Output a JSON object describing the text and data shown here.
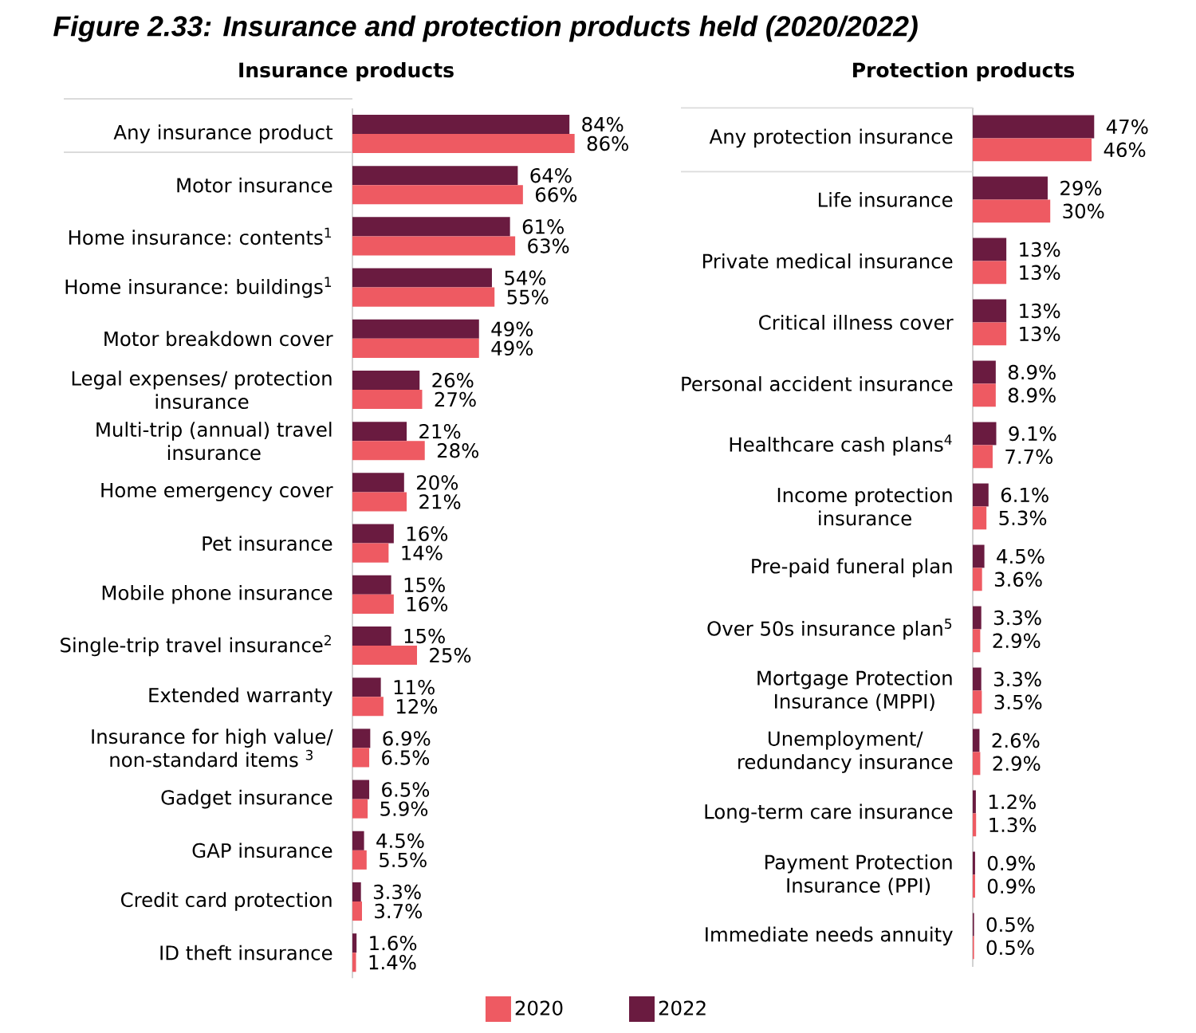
{
  "chart_data": [
    {
      "type": "bar",
      "orientation": "horizontal",
      "title": "Figure 2.33: Insurance and protection products held (2020/2022)",
      "subtitle": "Insurance products",
      "categories": [
        "Any insurance product",
        "Motor insurance",
        "Home insurance: contents$^{1}$",
        "Home insurance: buildings$^{1}$",
        "Motor breakdown cover",
        "Legal expenses/ protection insurance",
        "Multi-trip (annual) travel insurance",
        "Home emergency cover",
        "Pet insurance",
        "Mobile phone insurance",
        "Single-trip travel insurance$^{2}$",
        "Extended warranty",
        "Insurance for high value/ non-standard items $^{3}$",
        "Gadget insurance",
        "GAP insurance",
        "Credit card protection",
        "ID theft insurance"
      ],
      "series": [
        {
          "name": "2022",
          "color": "#6a1b40",
          "values": [
            84,
            64,
            61,
            54,
            49,
            26,
            21,
            20,
            16,
            15,
            15,
            11,
            6.9,
            6.5,
            4.5,
            3.3,
            1.6
          ],
          "value_labels": [
            "84%",
            "64%",
            "61%",
            "54%",
            "49%",
            "26%",
            "21%",
            "20%",
            "16%",
            "15%",
            "15%",
            "11%",
            "6.9%",
            "6.5%",
            "4.5%",
            "3.3%",
            "1.6%"
          ]
        },
        {
          "name": "2020",
          "color": "#ee5a62",
          "values": [
            86,
            66,
            63,
            55,
            49,
            27,
            28,
            21,
            14,
            16,
            25,
            12,
            6.5,
            5.9,
            5.5,
            3.7,
            1.4
          ],
          "value_labels": [
            "86%",
            "66%",
            "63%",
            "55%",
            "49%",
            "27%",
            "28%",
            "21%",
            "14%",
            "16%",
            "25%",
            "12%",
            "6.5%",
            "5.9%",
            "5.5%",
            "3.7%",
            "1.4%"
          ]
        }
      ],
      "tick_labels": "y",
      "legend": "bottom"
    },
    {
      "type": "bar",
      "orientation": "horizontal",
      "subtitle": "Protection products",
      "categories": [
        "Any protection insurance",
        "Life insurance",
        "Private medical insurance",
        "Critical illness cover",
        "Personal accident insurance",
        "Healthcare cash plans$^{4}$",
        "Income protection insurance",
        "Pre-paid funeral plan",
        "Over 50s insurance plan$^{5}$",
        "Mortgage Protection Insurance (MPPI)",
        "Unemployment/ redundancy insurance",
        "Long-term care insurance",
        "Payment Protection Insurance (PPI)",
        "Immediate needs annuity"
      ],
      "series": [
        {
          "color": "#6a1b40",
          "values": [
            47,
            29,
            13,
            13,
            8.9,
            9.1,
            6.1,
            4.5,
            3.3,
            3.3,
            2.6,
            1.2,
            0.9,
            0.5
          ],
          "value_labels": [
            "47%",
            "29%",
            "13%",
            "13%",
            "8.9%",
            "9.1%",
            "6.1%",
            "4.5%",
            "3.3%",
            "3.3%",
            "2.6%",
            "1.2%",
            "0.9%",
            "0.5%"
          ]
        },
        {
          "color": "#ee5a62",
          "values": [
            46,
            30,
            13,
            13,
            8.9,
            7.7,
            5.3,
            3.6,
            2.9,
            3.5,
            2.9,
            1.3,
            0.9,
            0.5
          ],
          "value_labels": [
            "46%",
            "30%",
            "13%",
            "13%",
            "8.9%",
            "7.7%",
            "5.3%",
            "3.6%",
            "2.9%",
            "3.5%",
            "2.9%",
            "1.3%",
            "0.9%",
            "0.5%"
          ]
        }
      ],
      "tick_labels": "y"
    }
  ]
}
